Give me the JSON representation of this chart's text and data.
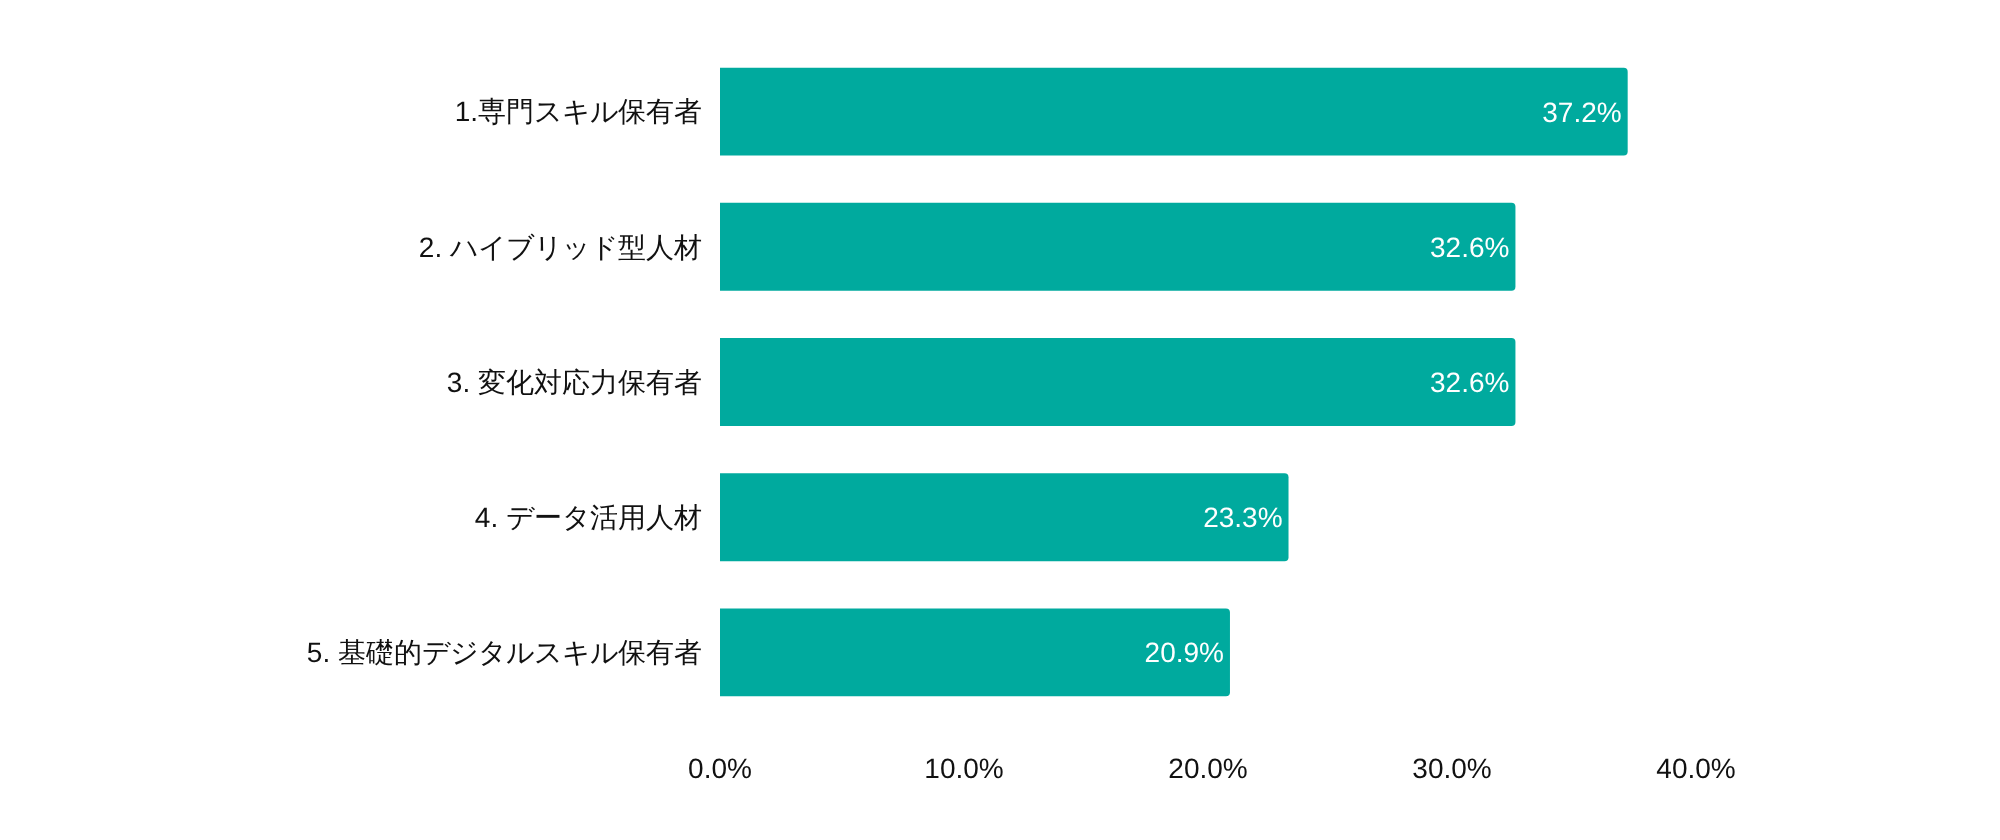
{
  "chart_data": {
    "type": "bar",
    "orientation": "horizontal",
    "categories": [
      "1.専門スキル保有者",
      "2. ハイブリッド型人材",
      "3. 変化対応力保有者",
      "4. データ活用人材",
      "5. 基礎的デジタルスキル保有者"
    ],
    "values": [
      37.2,
      32.6,
      32.6,
      23.3,
      20.9
    ],
    "color": "#00aa9e",
    "value_labels": [
      "37.2%",
      "32.6%",
      "32.6%",
      "23.3%",
      "20.9%"
    ],
    "xlim": [
      0,
      40
    ],
    "xticks": [
      {
        "value": 0,
        "label": "0.0%"
      },
      {
        "value": 10,
        "label": "10.0%"
      },
      {
        "value": 20,
        "label": "20.0%"
      },
      {
        "value": 30,
        "label": "30.0%"
      },
      {
        "value": 40,
        "label": "40.0%"
      }
    ]
  }
}
